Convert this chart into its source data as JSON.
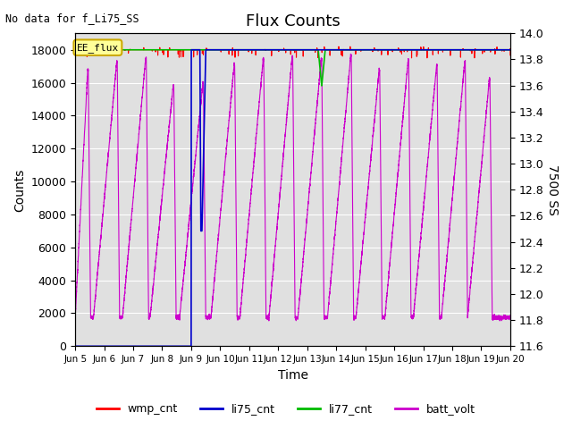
{
  "title": "Flux Counts",
  "top_left_text": "No data for f_Li75_SS",
  "xlabel": "Time",
  "ylabel_left": "Counts",
  "ylabel_right": "7500 SS",
  "annotation_text": "EE_flux",
  "ylim_left": [
    0,
    19000
  ],
  "ylim_right": [
    11.6,
    14.0
  ],
  "yticks_left": [
    0,
    2000,
    4000,
    6000,
    8000,
    10000,
    12000,
    14000,
    16000,
    18000
  ],
  "yticks_right": [
    11.6,
    11.8,
    12.0,
    12.2,
    12.4,
    12.6,
    12.8,
    13.0,
    13.2,
    13.4,
    13.6,
    13.8,
    14.0
  ],
  "xtick_labels": [
    "Jun 5",
    "Jun 6",
    "Jun 7",
    "Jun 8",
    "Jun 9",
    "Jun 10",
    "Jun 11",
    "Jun 12",
    "Jun 13",
    "Jun 14",
    "Jun 15",
    "Jun 16",
    "Jun 17",
    "Jun 18",
    "Jun 19",
    "Jun 20"
  ],
  "wmp_color": "#ff0000",
  "li75_color": "#0000cc",
  "li77_color": "#00bb00",
  "batt_color": "#cc00cc",
  "bg_color": "#e0e0e0",
  "annotation_bg": "#ffff99",
  "annotation_border": "#ccaa00",
  "wmp_value": 18000,
  "title_fontsize": 13,
  "label_fontsize": 10,
  "tick_fontsize": 9
}
